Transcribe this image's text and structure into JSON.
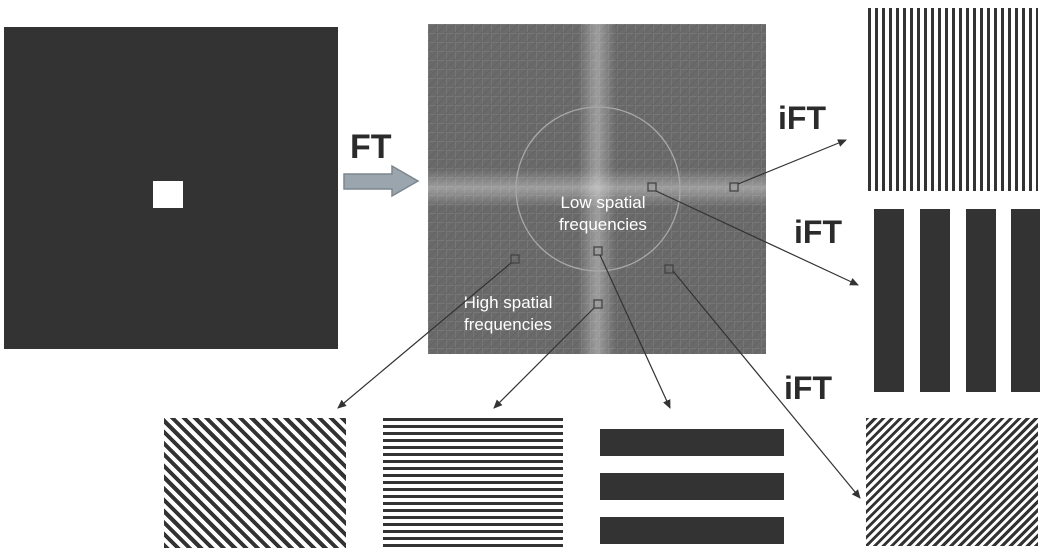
{
  "diagram": {
    "forward_transform_label": "FT",
    "inverse_transform_labels": [
      "iFT",
      "iFT",
      "iFT"
    ],
    "low_frequency_label": [
      "Low spatial",
      "frequencies"
    ],
    "high_frequency_label": [
      "High spatial",
      "frequencies"
    ],
    "colors": {
      "dark": "#333333",
      "spectrum": "#6e6e6e",
      "white": "#ffffff",
      "arrow": "#9aa5ad"
    }
  }
}
